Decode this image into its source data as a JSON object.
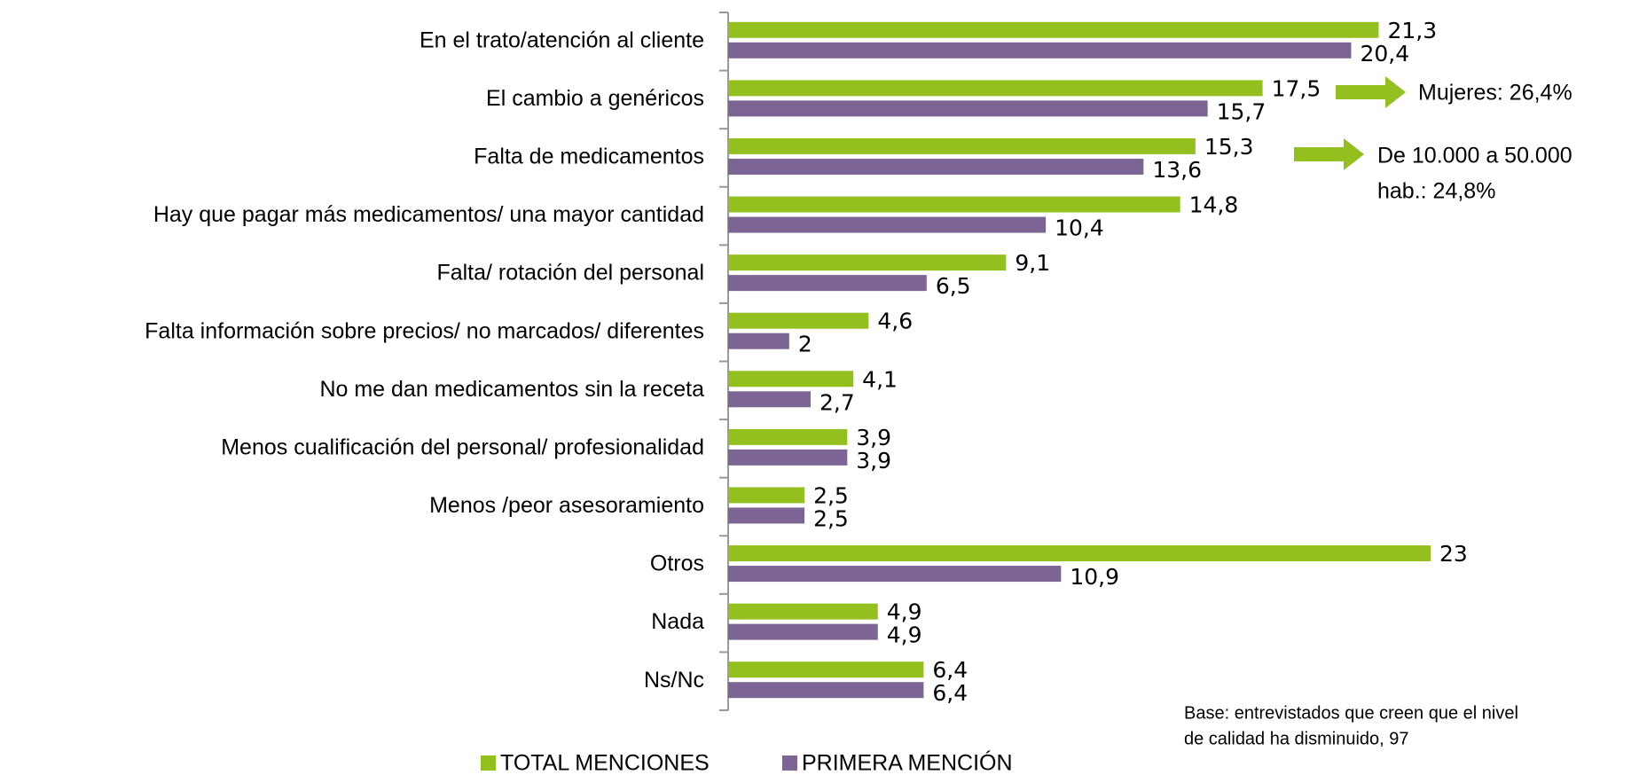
{
  "chart_data": {
    "type": "bar",
    "orientation": "horizontal",
    "categories": [
      "En el trato/atención al cliente",
      "El cambio a genéricos",
      "Falta de medicamentos",
      "Hay que pagar más medicamentos/ una mayor cantidad",
      "Falta/ rotación del personal",
      "Falta información sobre precios/ no marcados/ diferentes",
      "No me dan medicamentos sin la receta",
      "Menos cualificación del personal/ profesionalidad",
      "Menos /peor asesoramiento",
      "Otros",
      "Nada",
      "Ns/Nc"
    ],
    "series": [
      {
        "name": "TOTAL MENCIONES",
        "color": "#93c01f",
        "values": [
          21.3,
          17.5,
          15.3,
          14.8,
          9.1,
          4.6,
          4.1,
          3.9,
          2.5,
          23,
          4.9,
          6.4
        ],
        "value_labels": [
          "21,3",
          "17,5",
          "15,3",
          "14,8",
          "9,1",
          "4,6",
          "4,1",
          "3,9",
          "2,5",
          "23",
          "4,9",
          "6,4"
        ]
      },
      {
        "name": "PRIMERA MENCIÓN",
        "color": "#7c6495",
        "values": [
          20.4,
          15.7,
          13.6,
          10.4,
          6.5,
          2,
          2.7,
          3.9,
          2.5,
          10.9,
          4.9,
          6.4
        ],
        "value_labels": [
          "20,4",
          "15,7",
          "13,6",
          "10,4",
          "6,5",
          "2",
          "2,7",
          "3,9",
          "2,5",
          "10,9",
          "4,9",
          "6,4"
        ]
      }
    ],
    "xlim": [
      0,
      23
    ],
    "annotations": [
      {
        "text": [
          "Mujeres: 26,4%"
        ]
      },
      {
        "text": [
          "De 10.000 a 50.000",
          "hab.: 24,8%"
        ]
      }
    ],
    "note": [
      "Base: entrevistados que creen que el nivel",
      "de calidad ha  disminuido, 97"
    ],
    "legend": "bottom"
  }
}
